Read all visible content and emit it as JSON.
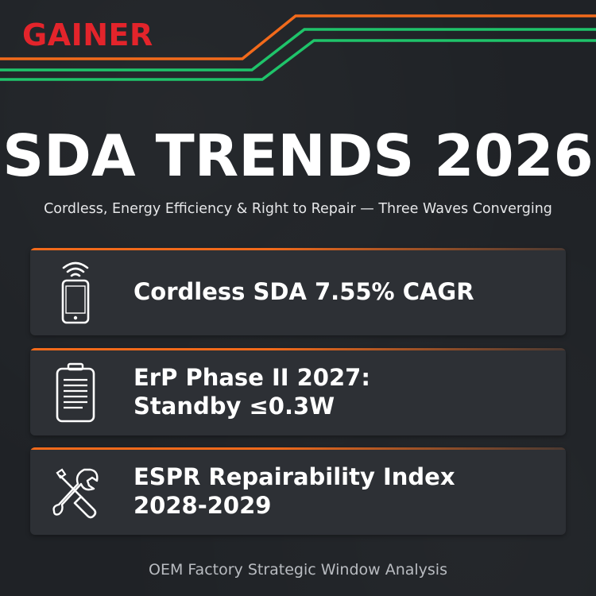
{
  "brand": {
    "name": "GAINER",
    "color": "#e3242b"
  },
  "header": {
    "title": "SDA TRENDS 2026",
    "subtitle": "Cordless, Energy Efficiency & Right to Repair — Three Waves Converging"
  },
  "decor": {
    "stripe_colors": [
      "#f26a1b",
      "#1fc46a",
      "#1fc46a"
    ]
  },
  "cards": [
    {
      "icon": "smartphone-wireless-icon",
      "lines": [
        "Cordless SDA 7.55% CAGR"
      ]
    },
    {
      "icon": "battery-document-icon",
      "lines": [
        "ErP Phase II 2027:",
        "Standby ≤0.3W"
      ]
    },
    {
      "icon": "wrench-screwdriver-icon",
      "lines": [
        "ESPR Repairability Index",
        "2028-2029"
      ]
    }
  ],
  "accent_color": "#f26a1b",
  "footer": {
    "text": "OEM Factory Strategic Window Analysis"
  }
}
